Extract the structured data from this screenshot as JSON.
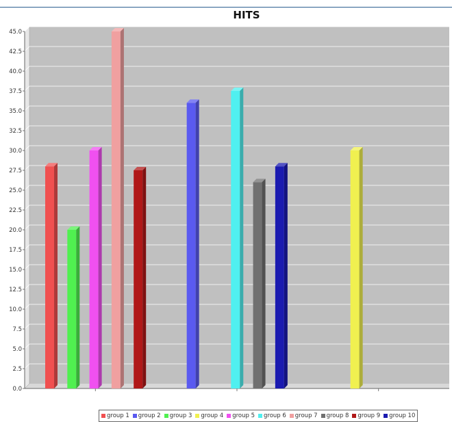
{
  "chart_data": {
    "type": "bar",
    "title": "HITS",
    "xlabel": "",
    "ylabel": "",
    "ylim": [
      0,
      45
    ],
    "yticks": [
      "0.0",
      "2.5",
      "5.0",
      "7.5",
      "10.0",
      "12.5",
      "15.0",
      "17.5",
      "20.0",
      "22.5",
      "25.0",
      "27.5",
      "30.0",
      "32.5",
      "35.0",
      "37.5",
      "40.0",
      "42.5",
      "45.0"
    ],
    "grid": true,
    "legend_position": "bottom",
    "categories": [
      "",
      "",
      ""
    ],
    "series": [
      {
        "name": "group 1",
        "color": "#f05050",
        "values": [
          28,
          null,
          null
        ]
      },
      {
        "name": "group 2",
        "color": "#5a5af0",
        "values": [
          null,
          36,
          null
        ]
      },
      {
        "name": "group 3",
        "color": "#50f050",
        "values": [
          20,
          null,
          null
        ]
      },
      {
        "name": "group 4",
        "color": "#f0f050",
        "values": [
          null,
          null,
          30
        ]
      },
      {
        "name": "group 5",
        "color": "#f050f0",
        "values": [
          30,
          null,
          null
        ]
      },
      {
        "name": "group 6",
        "color": "#50f0f0",
        "values": [
          null,
          37.5,
          null
        ]
      },
      {
        "name": "group 7",
        "color": "#f0a0a0",
        "values": [
          45,
          null,
          null
        ]
      },
      {
        "name": "group 8",
        "color": "#707070",
        "values": [
          null,
          26,
          null
        ]
      },
      {
        "name": "group 9",
        "color": "#b01818",
        "values": [
          27.5,
          null,
          null
        ]
      },
      {
        "name": "group 10",
        "color": "#1a1ab0",
        "values": [
          null,
          28,
          null
        ]
      }
    ]
  }
}
